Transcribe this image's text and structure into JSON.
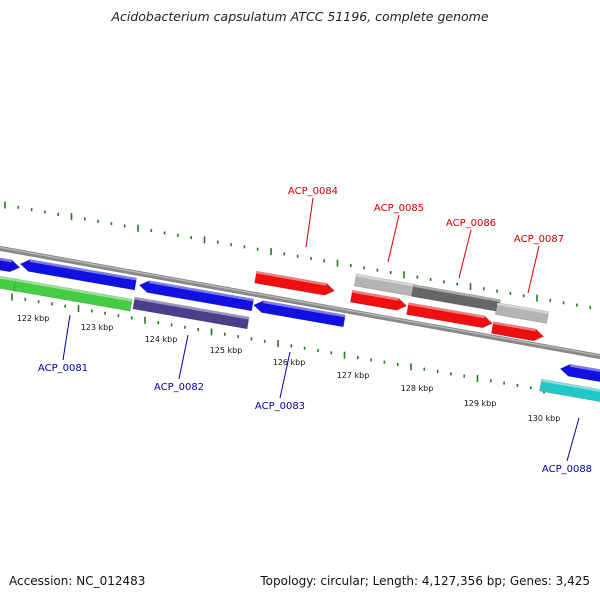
{
  "title": "Acidobacterium capsulatum ATCC 51196, complete genome",
  "footer": {
    "accession": "Accession: NC_012483",
    "stats": "Topology: circular; Length: 4,127,356 bp; Genes: 3,425"
  },
  "colors": {
    "background": "#ffffff",
    "backbone": "#888888",
    "tick": "#1f7a1f",
    "forward_label": "#cc0000",
    "reverse_label": "#0000aa",
    "gene_blue": "#1010e0",
    "gene_red": "#ee1010",
    "gene_green": "#44cc44",
    "gene_purple": "#4a3f8a",
    "gene_lightgray": "#b4b4b4",
    "gene_darkgray": "#666666",
    "gene_cyan": "#22c8c8"
  },
  "ticks": {
    "labels": [
      "122 kbp",
      "123 kbp",
      "124 kbp",
      "125 kbp",
      "126 kbp",
      "127 kbp",
      "128 kbp",
      "129 kbp",
      "130 kbp"
    ]
  },
  "gene_labels": {
    "forward": [
      "ACP_0084",
      "ACP_0085",
      "ACP_0086",
      "ACP_0087"
    ],
    "reverse": [
      "ACP_0081",
      "ACP_0082",
      "ACP_0083",
      "ACP_0088"
    ]
  }
}
